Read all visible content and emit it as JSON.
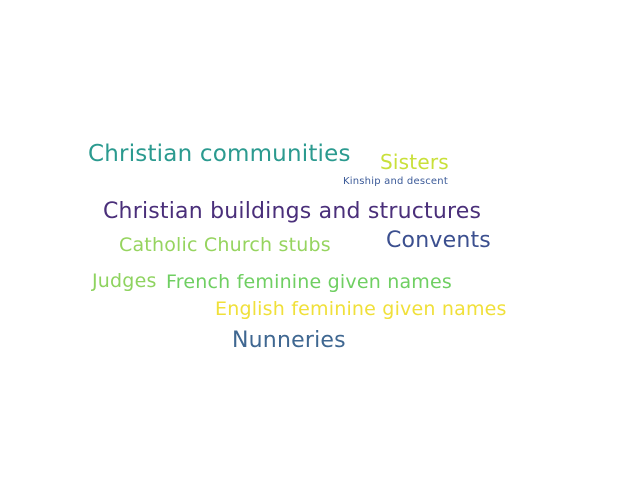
{
  "word_cloud": {
    "words": [
      {
        "text": "Christian communities",
        "color": "#2b9a8f"
      },
      {
        "text": "Sisters",
        "color": "#c9e03a"
      },
      {
        "text": "Kinship and descent",
        "color": "#3b5a98"
      },
      {
        "text": "Christian buildings and structures",
        "color": "#4a2f7a"
      },
      {
        "text": "Catholic Church stubs",
        "color": "#96d45f"
      },
      {
        "text": "Convents",
        "color": "#3b4f8f"
      },
      {
        "text": "Judges",
        "color": "#8ed35f"
      },
      {
        "text": "French feminine given names",
        "color": "#6fcf62"
      },
      {
        "text": "English feminine given names",
        "color": "#f0e03a"
      },
      {
        "text": "Nunneries",
        "color": "#3f6791"
      }
    ]
  }
}
